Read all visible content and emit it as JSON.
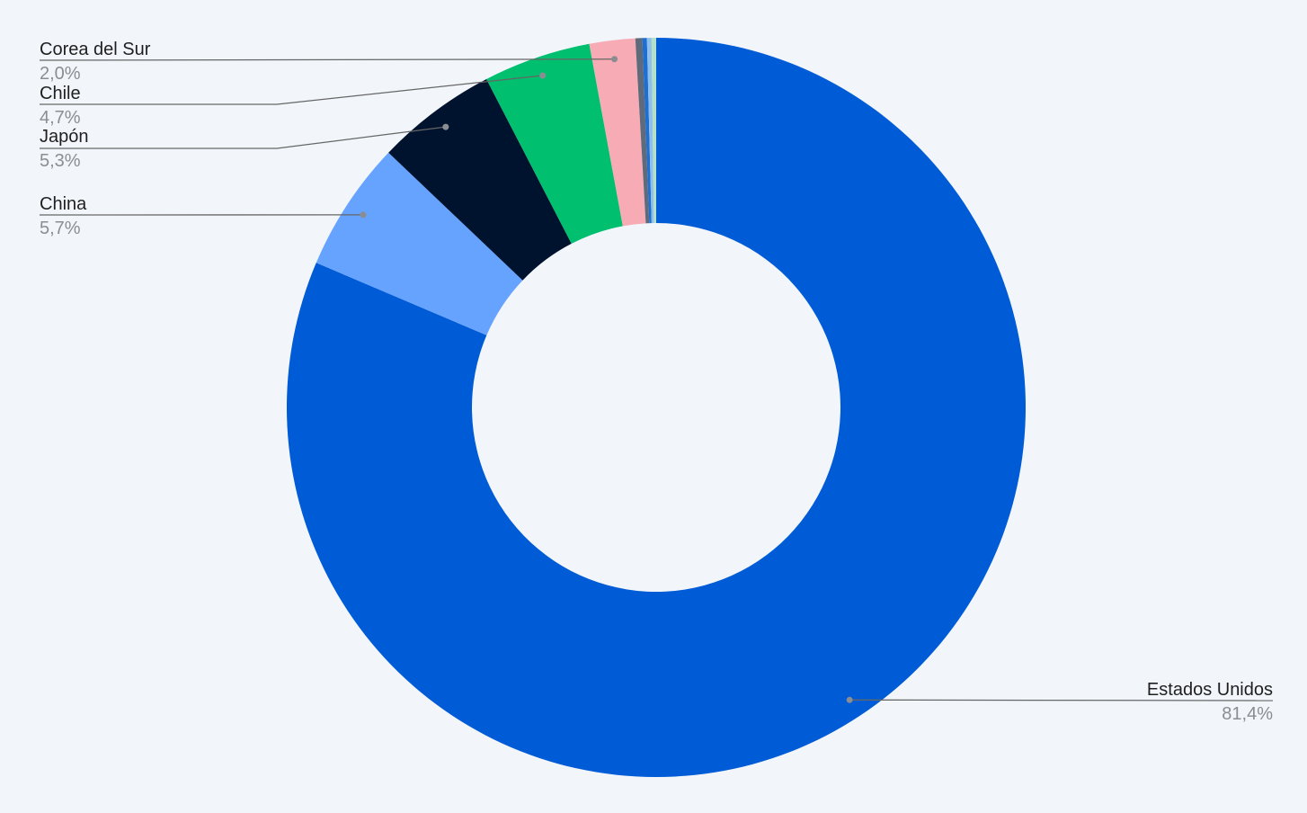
{
  "chart_data": {
    "type": "donut",
    "categories": [
      "Estados Unidos",
      "China",
      "Japón",
      "Chile",
      "Corea del Sur",
      null,
      null,
      null,
      null
    ],
    "values": [
      81.4,
      5.7,
      5.3,
      4.7,
      2.0,
      0.3,
      0.2,
      0.2,
      0.2
    ],
    "value_labels": [
      "81,4%",
      "5,7%",
      "5,3%",
      "4,7%",
      "2,0%",
      null,
      null,
      null,
      null
    ],
    "colors": [
      "#005bd6",
      "#66a3ff",
      "#00132e",
      "#00bf6f",
      "#f7abb4",
      "#5f6b7a",
      "#1f6fd1",
      "#8fc0ec",
      "#b5e0c8"
    ]
  }
}
